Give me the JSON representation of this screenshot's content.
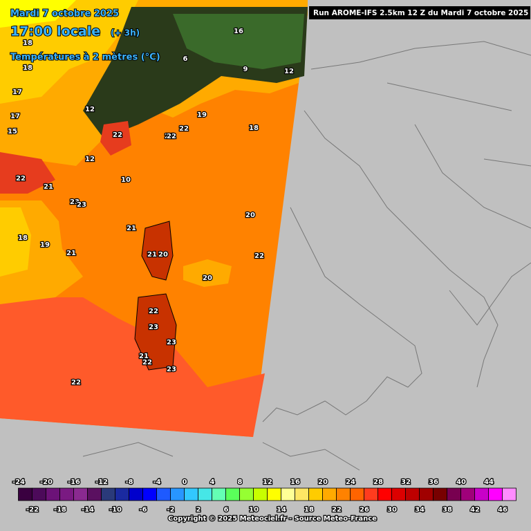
{
  "header": {
    "date": "Mardi 7 octobre 2025",
    "time": "17:00 locale",
    "offset": "(+ 3h)",
    "field": "Températures à 2 mètres (°C)",
    "run": "Run AROME-IFS 2.5km 12 Z du Mardi 7 octobre 2025"
  },
  "map_labels": [
    "18",
    "18",
    "17",
    "17",
    "15",
    "22",
    "21",
    "23",
    "23",
    "22",
    "21",
    "19",
    "12",
    "12",
    "10",
    "6",
    "9",
    "12",
    "16",
    "22",
    "18",
    "21",
    "21",
    "20",
    "22",
    "20",
    "21",
    "20",
    "19",
    "18",
    "22",
    "22",
    "23",
    "23",
    "21",
    "22",
    "23",
    "22"
  ],
  "colorbar": {
    "values": [
      -24,
      -22,
      -20,
      -18,
      -16,
      -14,
      -12,
      -10,
      -8,
      -6,
      -4,
      -2,
      0,
      2,
      4,
      6,
      8,
      10,
      12,
      14,
      16,
      18,
      20,
      22,
      24,
      26,
      28,
      30,
      32,
      34,
      36,
      38,
      40,
      42,
      44,
      46
    ],
    "colors": [
      "#3a0040",
      "#4c0a5a",
      "#6c1278",
      "#7a1a82",
      "#8a2a90",
      "#5a1060",
      "#2a3a7a",
      "#1a2aa0",
      "#0000cc",
      "#0000ff",
      "#1e5aff",
      "#2896ff",
      "#32c8ff",
      "#46e6e6",
      "#64ffb4",
      "#5aff5a",
      "#96ff32",
      "#c8ff00",
      "#ffff00",
      "#ffff96",
      "#ffe664",
      "#ffcc00",
      "#ffaa00",
      "#ff8200",
      "#ff6400",
      "#ff3c1e",
      "#ff0000",
      "#dc0000",
      "#be0000",
      "#a00000",
      "#780000",
      "#780050",
      "#a0007a",
      "#c800c8",
      "#ff00ff",
      "#ff8cff"
    ]
  },
  "footer": {
    "copyright": "Copyright © 2025 Meteociel.fr - Source Meteo-France"
  }
}
